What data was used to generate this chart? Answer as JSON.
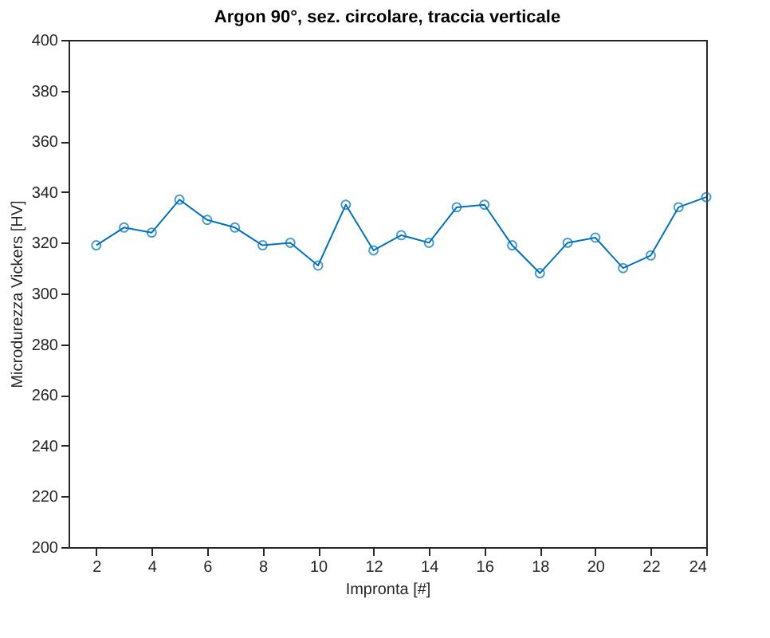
{
  "chart_data": {
    "type": "line",
    "title": "Argon 90°, sez. circolare, traccia verticale",
    "xlabel": "Impronta [#]",
    "ylabel": "Microdurezza Vickers [HV]",
    "x": [
      2,
      3,
      4,
      5,
      6,
      7,
      8,
      9,
      10,
      11,
      12,
      13,
      14,
      15,
      16,
      17,
      18,
      19,
      20,
      21,
      22,
      23,
      24
    ],
    "series": [
      {
        "color": "#0072bd",
        "values": [
          319,
          326,
          324,
          337,
          329,
          326,
          319,
          320,
          311,
          335,
          317,
          323,
          320,
          334,
          335,
          319,
          308,
          320,
          322,
          310,
          315,
          334,
          338
        ]
      }
    ],
    "xlim": [
      1,
      24
    ],
    "xticks": [
      2,
      4,
      6,
      8,
      10,
      12,
      14,
      16,
      18,
      20,
      22,
      24
    ],
    "ylim": [
      200,
      400
    ],
    "yticks": [
      200,
      220,
      240,
      260,
      280,
      300,
      320,
      340,
      360,
      380,
      400
    ],
    "grid": false,
    "marker": "circle",
    "line_style": "solid"
  }
}
